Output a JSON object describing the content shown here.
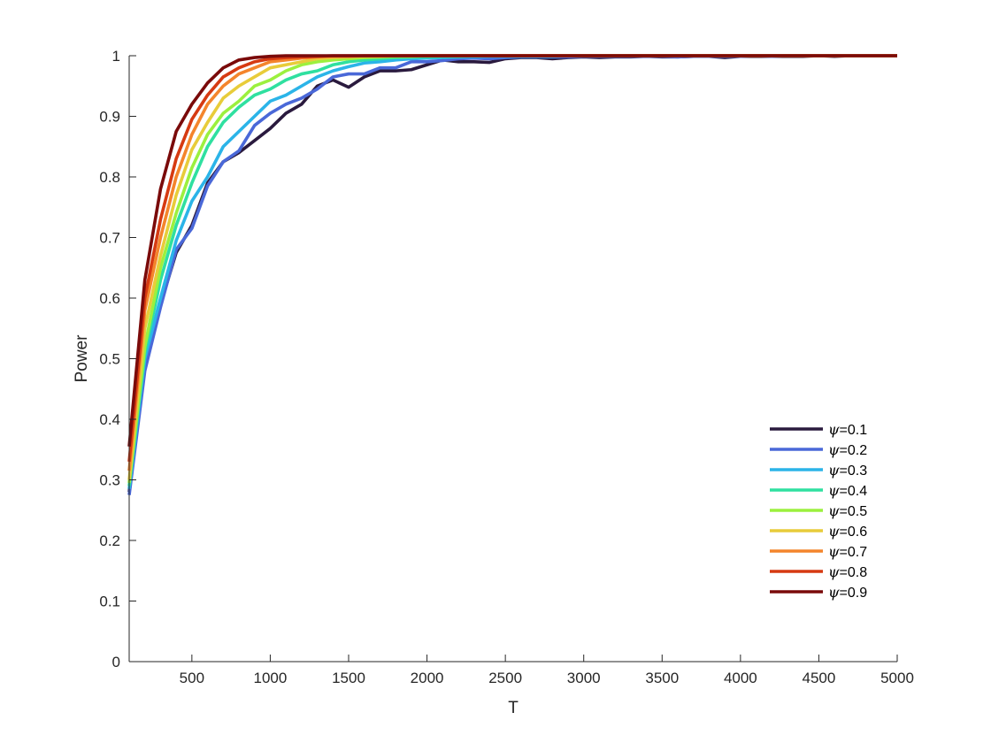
{
  "chart_data": {
    "type": "line",
    "title": "",
    "xlabel": "T",
    "ylabel": "Power",
    "xlim": [
      100,
      5000
    ],
    "ylim": [
      0,
      1
    ],
    "xticks": [
      500,
      1000,
      1500,
      2000,
      2500,
      3000,
      3500,
      4000,
      4500,
      5000
    ],
    "xtick_labels": [
      "500",
      "1000",
      "1500",
      "2000",
      "2500",
      "3000",
      "3500",
      "4000",
      "4500",
      "5000"
    ],
    "yticks": [
      0,
      0.1,
      0.2,
      0.3,
      0.4,
      0.5,
      0.6,
      0.7,
      0.8,
      0.9,
      1
    ],
    "ytick_labels": [
      "0",
      "0.1",
      "0.2",
      "0.3",
      "0.4",
      "0.5",
      "0.6",
      "0.7",
      "0.8",
      "0.9",
      "1"
    ],
    "grid": false,
    "legend_position": "lower-right",
    "x": [
      100,
      200,
      300,
      400,
      500,
      600,
      700,
      800,
      900,
      1000,
      1100,
      1200,
      1300,
      1400,
      1500,
      1600,
      1700,
      1800,
      1900,
      2000,
      2100,
      2200,
      2300,
      2400,
      2500,
      2600,
      2700,
      2800,
      2900,
      3000,
      3100,
      3200,
      3300,
      3400,
      3500,
      3600,
      3700,
      3800,
      3900,
      4000,
      4100,
      4200,
      4300,
      4400,
      4500,
      4600,
      4700,
      4800,
      4900,
      5000
    ],
    "series": [
      {
        "name": "ψ=0.1",
        "color": "#2a1a3e",
        "values": [
          0.28,
          0.49,
          0.59,
          0.675,
          0.72,
          0.79,
          0.825,
          0.84,
          0.86,
          0.88,
          0.905,
          0.92,
          0.95,
          0.96,
          0.948,
          0.965,
          0.975,
          0.975,
          0.977,
          0.985,
          0.993,
          0.99,
          0.99,
          0.989,
          0.995,
          0.997,
          0.997,
          0.995,
          0.997,
          0.998,
          0.997,
          0.998,
          0.998,
          0.999,
          0.998,
          0.998,
          0.999,
          0.999,
          0.997,
          0.999,
          0.999,
          0.999,
          0.999,
          0.999,
          1,
          0.999,
          1,
          1,
          1,
          1
        ]
      },
      {
        "name": "ψ=0.2",
        "color": "#4a68d8",
        "values": [
          0.275,
          0.48,
          0.585,
          0.68,
          0.715,
          0.785,
          0.825,
          0.843,
          0.885,
          0.905,
          0.92,
          0.93,
          0.945,
          0.965,
          0.97,
          0.97,
          0.98,
          0.98,
          0.99,
          0.99,
          0.992,
          0.995,
          0.996,
          0.995,
          0.997,
          0.998,
          0.998,
          0.998,
          0.998,
          0.999,
          0.999,
          0.999,
          0.999,
          0.999,
          0.999,
          0.998,
          0.999,
          0.999,
          0.999,
          0.999,
          1,
          0.999,
          1,
          1,
          1,
          1,
          1,
          1,
          1,
          1
        ]
      },
      {
        "name": "ψ=0.3",
        "color": "#2bb4e8",
        "values": [
          0.285,
          0.5,
          0.6,
          0.695,
          0.76,
          0.8,
          0.85,
          0.875,
          0.9,
          0.925,
          0.935,
          0.95,
          0.965,
          0.975,
          0.982,
          0.988,
          0.99,
          0.993,
          0.995,
          0.996,
          0.997,
          0.998,
          0.998,
          0.999,
          0.999,
          0.999,
          0.999,
          0.999,
          1,
          1,
          1,
          1,
          1,
          1,
          1,
          1,
          1,
          1,
          1,
          1,
          1,
          1,
          1,
          1,
          1,
          1,
          1,
          1,
          1,
          1
        ]
      },
      {
        "name": "ψ=0.4",
        "color": "#2fe0a0",
        "values": [
          0.29,
          0.51,
          0.63,
          0.72,
          0.79,
          0.85,
          0.89,
          0.915,
          0.935,
          0.945,
          0.96,
          0.97,
          0.975,
          0.985,
          0.99,
          0.993,
          0.995,
          0.997,
          0.998,
          0.998,
          0.999,
          0.999,
          1,
          1,
          1,
          1,
          1,
          1,
          1,
          1,
          1,
          1,
          1,
          1,
          1,
          1,
          1,
          1,
          1,
          1,
          1,
          1,
          1,
          1,
          1,
          1,
          1,
          1,
          1,
          1
        ]
      },
      {
        "name": "ψ=0.5",
        "color": "#9cf03e",
        "values": [
          0.295,
          0.52,
          0.65,
          0.74,
          0.815,
          0.87,
          0.905,
          0.925,
          0.95,
          0.96,
          0.975,
          0.985,
          0.99,
          0.993,
          0.995,
          0.997,
          0.998,
          0.999,
          0.999,
          1,
          1,
          1,
          1,
          1,
          1,
          1,
          1,
          1,
          1,
          1,
          1,
          1,
          1,
          1,
          1,
          1,
          1,
          1,
          1,
          1,
          1,
          1,
          1,
          1,
          1,
          1,
          1,
          1,
          1,
          1
        ]
      },
      {
        "name": "ψ=0.6",
        "color": "#e8cc3a",
        "values": [
          0.3,
          0.55,
          0.67,
          0.77,
          0.845,
          0.89,
          0.93,
          0.95,
          0.965,
          0.98,
          0.985,
          0.99,
          0.995,
          0.997,
          0.998,
          0.999,
          0.999,
          1,
          1,
          1,
          1,
          1,
          1,
          1,
          1,
          1,
          1,
          1,
          1,
          1,
          1,
          1,
          1,
          1,
          1,
          1,
          1,
          1,
          1,
          1,
          1,
          1,
          1,
          1,
          1,
          1,
          1,
          1,
          1,
          1
        ]
      },
      {
        "name": "ψ=0.7",
        "color": "#f4852c",
        "values": [
          0.315,
          0.58,
          0.7,
          0.8,
          0.87,
          0.92,
          0.95,
          0.97,
          0.98,
          0.99,
          0.993,
          0.996,
          0.998,
          0.999,
          0.999,
          1,
          1,
          1,
          1,
          1,
          1,
          1,
          1,
          1,
          1,
          1,
          1,
          1,
          1,
          1,
          1,
          1,
          1,
          1,
          1,
          1,
          1,
          1,
          1,
          1,
          1,
          1,
          1,
          1,
          1,
          1,
          1,
          1,
          1,
          1
        ]
      },
      {
        "name": "ψ=0.8",
        "color": "#d63a12",
        "values": [
          0.33,
          0.6,
          0.73,
          0.83,
          0.895,
          0.935,
          0.965,
          0.98,
          0.99,
          0.995,
          0.997,
          0.998,
          0.999,
          1,
          1,
          1,
          1,
          1,
          1,
          1,
          1,
          1,
          1,
          1,
          1,
          1,
          1,
          1,
          1,
          1,
          1,
          1,
          1,
          1,
          1,
          1,
          1,
          1,
          1,
          1,
          1,
          1,
          1,
          1,
          1,
          1,
          1,
          1,
          1,
          1
        ]
      },
      {
        "name": "ψ=0.9",
        "color": "#7a0a0a",
        "values": [
          0.355,
          0.63,
          0.78,
          0.875,
          0.92,
          0.955,
          0.98,
          0.993,
          0.997,
          0.999,
          1,
          1,
          1,
          1,
          1,
          1,
          1,
          1,
          1,
          1,
          1,
          1,
          1,
          1,
          1,
          1,
          1,
          1,
          1,
          1,
          1,
          1,
          1,
          1,
          1,
          1,
          1,
          1,
          1,
          1,
          1,
          1,
          1,
          1,
          1,
          1,
          1,
          1,
          1,
          1
        ]
      }
    ]
  }
}
